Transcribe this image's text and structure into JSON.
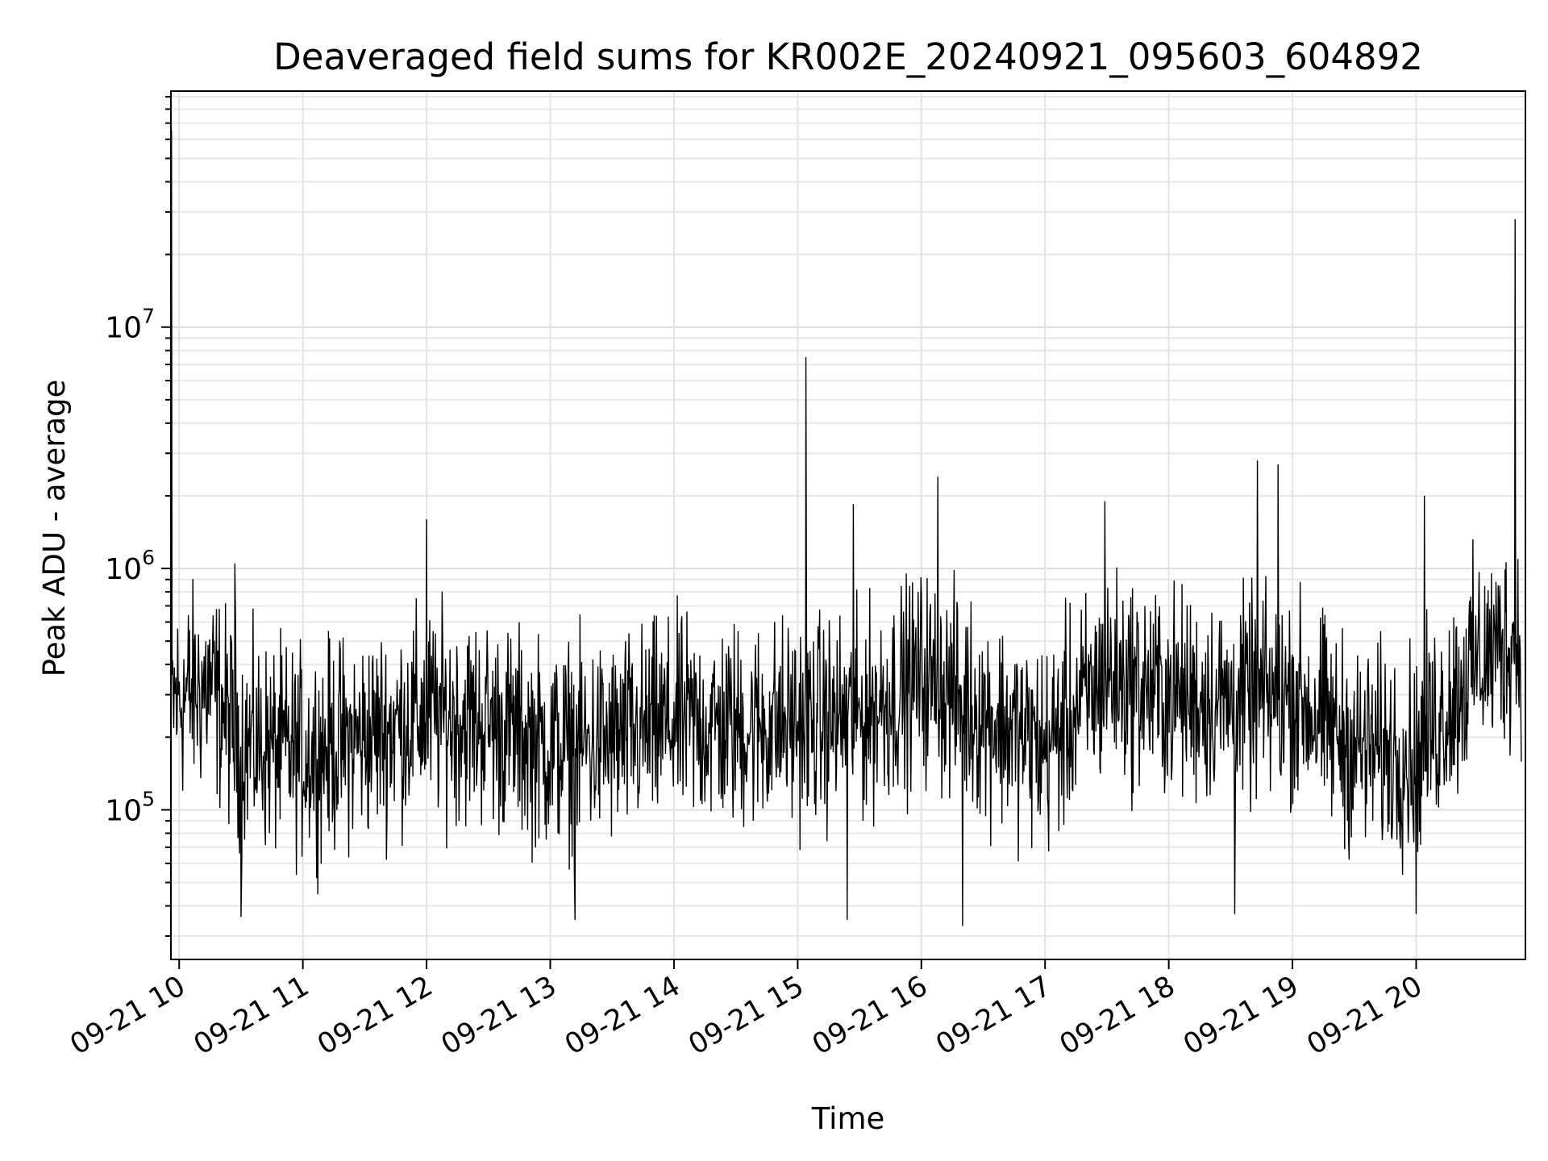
{
  "chart_data": {
    "type": "line",
    "title": "Deaveraged field sums for KR002E_20240921_095603_604892",
    "xlabel": "Time",
    "ylabel": "Peak ADU - average",
    "yscale": "log",
    "grid": true,
    "grid_minor": true,
    "xlim": [
      "2024-09-21 09:56",
      "2024-09-21 20:53"
    ],
    "ylim": [
      24000,
      95000000
    ],
    "x_ticks": [
      "09-21 10",
      "09-21 11",
      "09-21 12",
      "09-21 13",
      "09-21 14",
      "09-21 15",
      "09-21 16",
      "09-21 17",
      "09-21 18",
      "09-21 19",
      "09-21 20"
    ],
    "y_ticks": [
      {
        "value": 100000,
        "base": "10",
        "exp": "5"
      },
      {
        "value": 1000000,
        "base": "10",
        "exp": "6"
      },
      {
        "value": 10000000,
        "base": "10",
        "exp": "7"
      }
    ],
    "series": [
      {
        "color": "#000000",
        "start": "2024-09-21 09:56",
        "end": "2024-09-21 20:51",
        "profile": [
          {
            "x": "2024-09-21 09:56",
            "y": 280000
          },
          {
            "x": "2024-09-21 10:15",
            "y": 330000
          },
          {
            "x": "2024-09-21 10:30",
            "y": 190000
          },
          {
            "x": "2024-09-21 11:00",
            "y": 170000
          },
          {
            "x": "2024-09-21 11:30",
            "y": 200000
          },
          {
            "x": "2024-09-21 12:00",
            "y": 250000
          },
          {
            "x": "2024-09-21 12:30",
            "y": 230000
          },
          {
            "x": "2024-09-21 13:00",
            "y": 180000
          },
          {
            "x": "2024-09-21 13:30",
            "y": 190000
          },
          {
            "x": "2024-09-21 14:00",
            "y": 230000
          },
          {
            "x": "2024-09-21 14:30",
            "y": 220000
          },
          {
            "x": "2024-09-21 15:00",
            "y": 230000
          },
          {
            "x": "2024-09-21 15:30",
            "y": 240000
          },
          {
            "x": "2024-09-21 16:00",
            "y": 360000
          },
          {
            "x": "2024-09-21 16:30",
            "y": 250000
          },
          {
            "x": "2024-09-21 17:00",
            "y": 180000
          },
          {
            "x": "2024-09-21 17:30",
            "y": 360000
          },
          {
            "x": "2024-09-21 18:00",
            "y": 300000
          },
          {
            "x": "2024-09-21 18:30",
            "y": 280000
          },
          {
            "x": "2024-09-21 19:00",
            "y": 300000
          },
          {
            "x": "2024-09-21 19:30",
            "y": 180000
          },
          {
            "x": "2024-09-21 20:00",
            "y": 170000
          },
          {
            "x": "2024-09-21 20:30",
            "y": 420000
          },
          {
            "x": "2024-09-21 20:51",
            "y": 520000
          }
        ],
        "spikes": [
          {
            "x": "2024-09-21 09:56",
            "y": 65000000
          },
          {
            "x": "2024-09-21 10:27",
            "y": 1050000
          },
          {
            "x": "2024-09-21 12:00",
            "y": 1600000
          },
          {
            "x": "2024-09-21 15:04",
            "y": 7500000
          },
          {
            "x": "2024-09-21 15:27",
            "y": 1850000
          },
          {
            "x": "2024-09-21 16:08",
            "y": 2400000
          },
          {
            "x": "2024-09-21 17:29",
            "y": 1900000
          },
          {
            "x": "2024-09-21 18:43",
            "y": 2800000
          },
          {
            "x": "2024-09-21 18:53",
            "y": 2700000
          },
          {
            "x": "2024-09-21 20:04",
            "y": 2000000
          },
          {
            "x": "2024-09-21 20:48",
            "y": 28000000
          }
        ],
        "dips": [
          {
            "x": "2024-09-21 10:30",
            "y": 36000
          },
          {
            "x": "2024-09-21 13:12",
            "y": 35000
          },
          {
            "x": "2024-09-21 15:24",
            "y": 35000
          },
          {
            "x": "2024-09-21 16:20",
            "y": 33000
          },
          {
            "x": "2024-09-21 18:32",
            "y": 37000
          },
          {
            "x": "2024-09-21 20:00",
            "y": 37000
          }
        ]
      }
    ]
  }
}
